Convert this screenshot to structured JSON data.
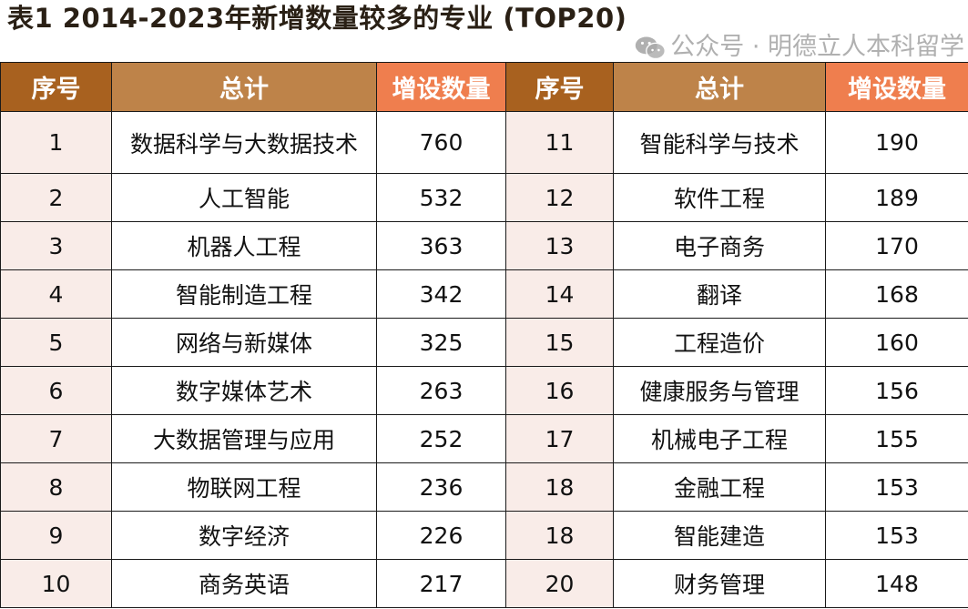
{
  "title": "表1 2014-2023年新增数量较多的专业 (TOP20)",
  "headers": [
    "序号",
    "总计",
    "增设数量",
    "序号",
    "总计",
    "增设数量"
  ],
  "colors": {
    "header_index": "#a8611f",
    "header_major": "#be8349",
    "header_count": "#ef7e4e",
    "index_cell": "#f9ece8"
  },
  "rows": [
    {
      "left": {
        "rank": "1",
        "major": "数据科学与大数据技术",
        "count": "760"
      },
      "right": {
        "rank": "11",
        "major": "智能科学与技术",
        "count": "190"
      }
    },
    {
      "left": {
        "rank": "2",
        "major": "人工智能",
        "count": "532"
      },
      "right": {
        "rank": "12",
        "major": "软件工程",
        "count": "189"
      }
    },
    {
      "left": {
        "rank": "3",
        "major": "机器人工程",
        "count": "363"
      },
      "right": {
        "rank": "13",
        "major": "电子商务",
        "count": "170"
      }
    },
    {
      "left": {
        "rank": "4",
        "major": "智能制造工程",
        "count": "342"
      },
      "right": {
        "rank": "14",
        "major": "翻译",
        "count": "168"
      }
    },
    {
      "left": {
        "rank": "5",
        "major": "网络与新媒体",
        "count": "325"
      },
      "right": {
        "rank": "15",
        "major": "工程造价",
        "count": "160"
      }
    },
    {
      "left": {
        "rank": "6",
        "major": "数字媒体艺术",
        "count": "263"
      },
      "right": {
        "rank": "16",
        "major": "健康服务与管理",
        "count": "156"
      }
    },
    {
      "left": {
        "rank": "7",
        "major": "大数据管理与应用",
        "count": "252"
      },
      "right": {
        "rank": "17",
        "major": "机械电子工程",
        "count": "155"
      }
    },
    {
      "left": {
        "rank": "8",
        "major": "物联网工程",
        "count": "236"
      },
      "right": {
        "rank": "18",
        "major": "金融工程",
        "count": "153"
      }
    },
    {
      "left": {
        "rank": "9",
        "major": "数字经济",
        "count": "226"
      },
      "right": {
        "rank": "18",
        "major": "智能建造",
        "count": "153"
      }
    },
    {
      "left": {
        "rank": "10",
        "major": "商务英语",
        "count": "217"
      },
      "right": {
        "rank": "20",
        "major": "财务管理",
        "count": "148"
      }
    }
  ],
  "watermark": {
    "icon": "wechat-icon",
    "text": "公众号 · 明德立人本科留学"
  }
}
